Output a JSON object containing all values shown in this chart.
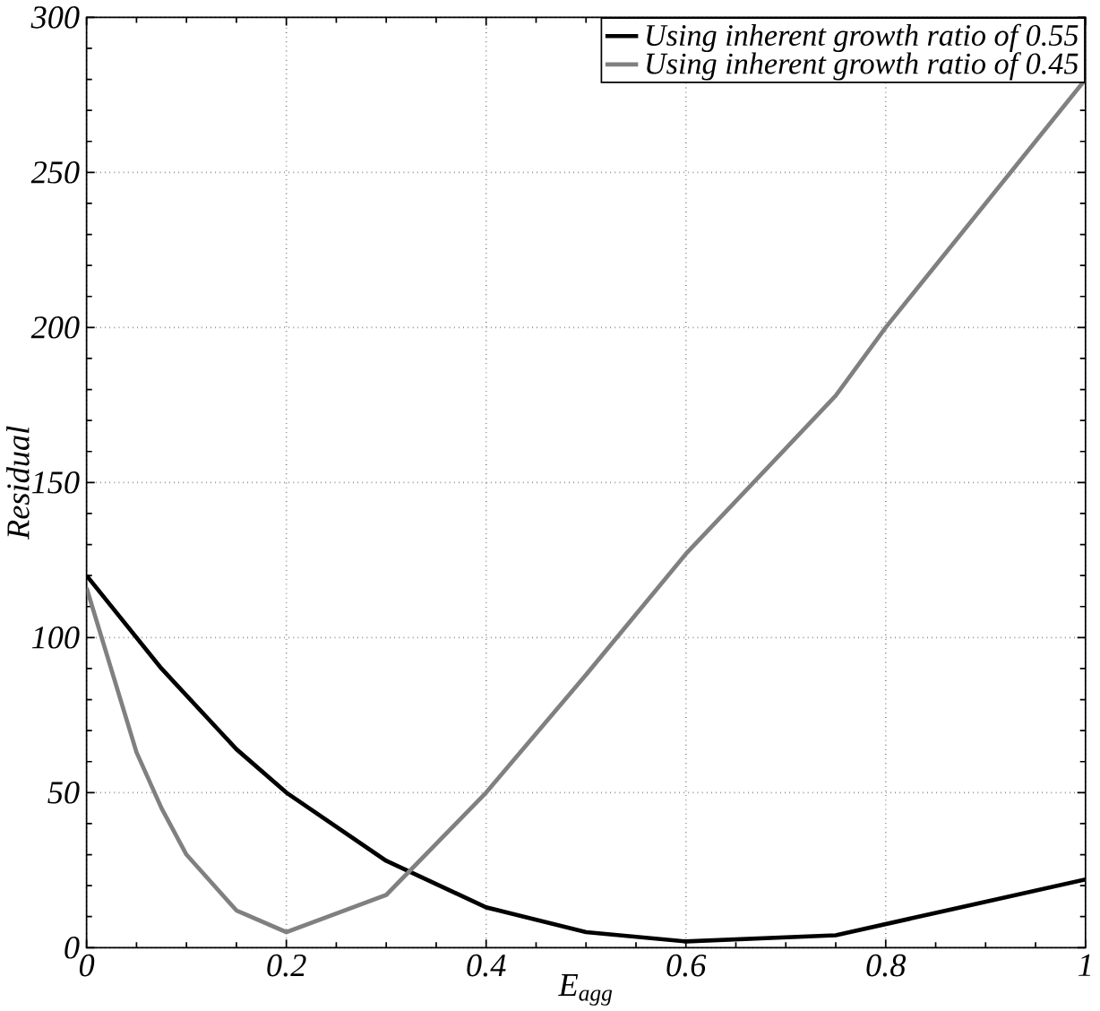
{
  "chart_data": {
    "type": "line",
    "xlabel": "E$_{agg}$",
    "ylabel": "Residual",
    "xlim": [
      0,
      1
    ],
    "ylim": [
      0,
      300
    ],
    "xticks": [
      0,
      0.2,
      0.4,
      0.6,
      0.8,
      1
    ],
    "yticks": [
      0,
      50,
      100,
      150,
      200,
      250,
      300
    ],
    "grid": true,
    "legend": "top right",
    "marker": "none",
    "line_style": "solid",
    "series": [
      {
        "name": "Using inherent growth ratio of 0.55",
        "color": "#000000",
        "x": [
          0,
          0.075,
          0.15,
          0.2,
          0.3,
          0.4,
          0.5,
          0.6,
          0.75,
          1
        ],
        "values": [
          120,
          90,
          64,
          50,
          28,
          13,
          5,
          2,
          4,
          22
        ]
      },
      {
        "name": "Using inherent growth ratio of 0.45",
        "color": "#808080",
        "x": [
          0,
          0.05,
          0.075,
          0.1,
          0.15,
          0.2,
          0.3,
          0.4,
          0.5,
          0.6,
          0.75,
          0.8,
          1
        ],
        "values": [
          116,
          63,
          45,
          30,
          12,
          5,
          17,
          50,
          88,
          127,
          178,
          200,
          280
        ]
      }
    ]
  }
}
